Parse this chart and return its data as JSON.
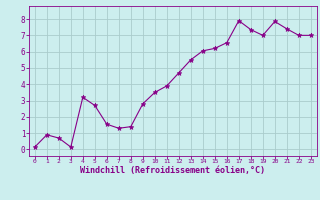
{
  "x": [
    0,
    1,
    2,
    3,
    4,
    5,
    6,
    7,
    8,
    9,
    10,
    11,
    12,
    13,
    14,
    15,
    16,
    17,
    18,
    19,
    20,
    21,
    22,
    23
  ],
  "y": [
    0.15,
    0.9,
    0.7,
    0.15,
    3.2,
    2.7,
    1.55,
    1.3,
    1.4,
    2.8,
    3.5,
    3.9,
    4.7,
    5.5,
    6.05,
    6.2,
    6.55,
    7.9,
    7.35,
    7.0,
    7.85,
    7.4,
    7.0,
    7.0
  ],
  "line_color": "#880088",
  "marker": "*",
  "marker_color": "#880088",
  "bg_color": "#cceeee",
  "grid_color": "#aacccc",
  "xlabel": "Windchill (Refroidissement éolien,°C)",
  "xlabel_color": "#880088",
  "tick_color": "#880088",
  "xlim": [
    -0.5,
    23.5
  ],
  "ylim": [
    -0.4,
    8.8
  ],
  "yticks": [
    0,
    1,
    2,
    3,
    4,
    5,
    6,
    7,
    8
  ],
  "xticks": [
    0,
    1,
    2,
    3,
    4,
    5,
    6,
    7,
    8,
    9,
    10,
    11,
    12,
    13,
    14,
    15,
    16,
    17,
    18,
    19,
    20,
    21,
    22,
    23
  ]
}
